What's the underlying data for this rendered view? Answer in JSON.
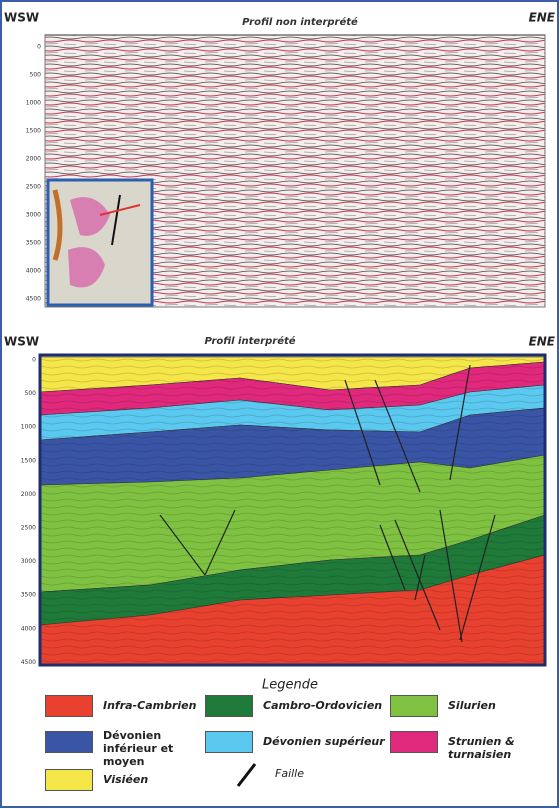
{
  "header": {
    "left": "WSW",
    "right": "ENE"
  },
  "panels": [
    {
      "title": "Profil non interprété",
      "depth_labels": [
        "0",
        "500",
        "1000",
        "1500",
        "2000",
        "2500",
        "3000",
        "3500",
        "4000",
        "4500"
      ]
    },
    {
      "title": "Profil interprété",
      "depth_labels": [
        "0",
        "500",
        "1000",
        "1500",
        "2000",
        "2500",
        "3000",
        "3500",
        "4000",
        "4500"
      ]
    }
  ],
  "legend": {
    "title": "Legende",
    "items": [
      {
        "label": "Infra-Cambrien",
        "color": "#e8412f"
      },
      {
        "label": "Cambro-Ordovicien",
        "color": "#1f7a3a"
      },
      {
        "label": "Silurien",
        "color": "#7fc242"
      },
      {
        "label": "Dévonien inférieur et moyen",
        "color": "#3a55a5"
      },
      {
        "label": "Dévonien supérieur",
        "color": "#5bc8ef"
      },
      {
        "label": "Strunien & turnaisien",
        "color": "#e0287c"
      },
      {
        "label": "Visiéen",
        "color": "#f5e64a"
      }
    ],
    "fault_label": "Faille"
  }
}
